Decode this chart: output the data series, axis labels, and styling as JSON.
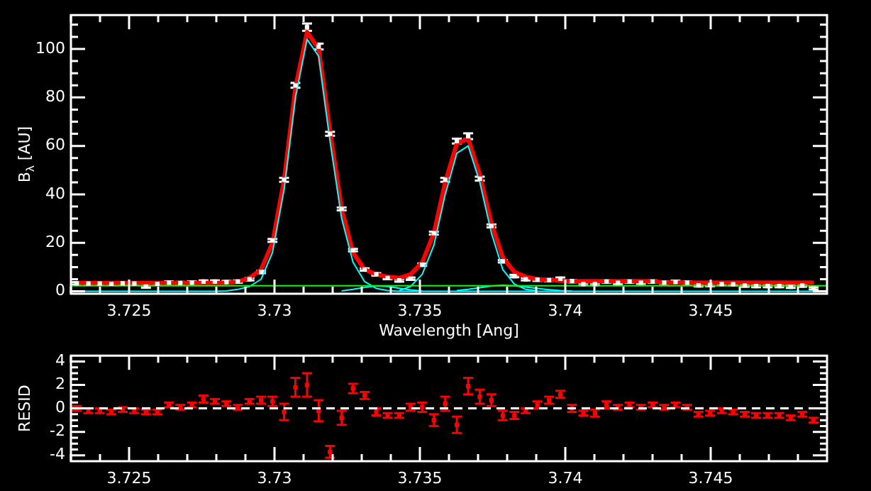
{
  "chart_data": [
    {
      "type": "line",
      "xlabel": "Wavelength [Ang]",
      "ylabel": "B$_{λ}$ [AU]",
      "x": [
        3.7232,
        3.7236,
        3.72399,
        3.72439,
        3.72478,
        3.72518,
        3.72558,
        3.72597,
        3.72637,
        3.72676,
        3.72716,
        3.72756,
        3.72795,
        3.72835,
        3.72874,
        3.72914,
        3.72954,
        3.72993,
        3.73033,
        3.73072,
        3.73112,
        3.73152,
        3.73191,
        3.73231,
        3.7327,
        3.7331,
        3.7335,
        3.73389,
        3.73429,
        3.73468,
        3.73508,
        3.73548,
        3.73587,
        3.73627,
        3.73666,
        3.73706,
        3.73746,
        3.73785,
        3.73825,
        3.73864,
        3.73904,
        3.73944,
        3.73983,
        3.74023,
        3.74062,
        3.74102,
        3.74142,
        3.74181,
        3.74221,
        3.7426,
        3.743,
        3.7434,
        3.74379,
        3.74419,
        3.74458,
        3.74498,
        3.74538,
        3.74577,
        3.74617,
        3.74656,
        3.74696,
        3.74736,
        3.74775,
        3.74815,
        3.74854
      ],
      "xlim": [
        3.723,
        3.749
      ],
      "xticks": [
        {
          "value": 3.723,
          "label": null
        },
        {
          "value": 3.724,
          "label": null
        },
        3.725,
        {
          "value": 3.726,
          "label": null
        },
        {
          "value": 3.727,
          "label": null
        },
        {
          "value": 3.728,
          "label": null
        },
        {
          "value": 3.729,
          "label": null
        },
        3.73,
        {
          "value": 3.731,
          "label": null
        },
        {
          "value": 3.732,
          "label": null
        },
        {
          "value": 3.733,
          "label": null
        },
        {
          "value": 3.734,
          "label": null
        },
        3.735,
        {
          "value": 3.736,
          "label": null
        },
        {
          "value": 3.737,
          "label": null
        },
        {
          "value": 3.738,
          "label": null
        },
        {
          "value": 3.739,
          "label": null
        },
        3.74,
        {
          "value": 3.741,
          "label": null
        },
        {
          "value": 3.742,
          "label": null
        },
        {
          "value": 3.743,
          "label": null
        },
        {
          "value": 3.744,
          "label": null
        },
        3.745,
        {
          "value": 3.746,
          "label": null
        },
        {
          "value": 3.747,
          "label": null
        },
        {
          "value": 3.748,
          "label": null
        }
      ],
      "ylim": [
        -1,
        114
      ],
      "yticks": [
        0,
        {
          "value": 5,
          "label": null
        },
        {
          "value": 10,
          "label": null
        },
        {
          "value": 15,
          "label": null
        },
        20,
        {
          "value": 25,
          "label": null
        },
        {
          "value": 30,
          "label": null
        },
        {
          "value": 35,
          "label": null
        },
        40,
        {
          "value": 45,
          "label": null
        },
        {
          "value": 50,
          "label": null
        },
        {
          "value": 55,
          "label": null
        },
        60,
        {
          "value": 65,
          "label": null
        },
        {
          "value": 70,
          "label": null
        },
        {
          "value": 75,
          "label": null
        },
        80,
        {
          "value": 85,
          "label": null
        },
        {
          "value": 90,
          "label": null
        },
        {
          "value": 95,
          "label": null
        },
        100,
        {
          "value": 105,
          "label": null
        },
        {
          "value": 110,
          "label": null
        }
      ],
      "line_style": "solid",
      "series": [
        {
          "type": "scatter",
          "marker": "square",
          "color": "#ffffff",
          "values": [
            3.3,
            3.2,
            3.2,
            3.1,
            3.3,
            3.2,
            2.0,
            3.1,
            3.6,
            3.4,
            3.6,
            4.0,
            4.0,
            3.8,
            4.0,
            5,
            8,
            21,
            46,
            85,
            109,
            101,
            65,
            34,
            17,
            9,
            7,
            5.5,
            4.5,
            5.2,
            11,
            24,
            46,
            62,
            64,
            46.5,
            27,
            12.4,
            6.3,
            5,
            4.8,
            4.6,
            5.2,
            4.2,
            3.0,
            3.0,
            4,
            3.5,
            4,
            3.6,
            4,
            3.6,
            3.9,
            3.6,
            2.5,
            2.6,
            3,
            2.9,
            2.4,
            2.2,
            2.2,
            2.2,
            1.9,
            2.4,
            1.3
          ],
          "errors": [
            0.5,
            0.5,
            0.5,
            0.5,
            0.5,
            0.5,
            0.5,
            0.5,
            0.5,
            0.5,
            0.5,
            0.5,
            0.5,
            0.5,
            0.5,
            0.5,
            0.5,
            0.6,
            0.8,
            1,
            1.5,
            1.2,
            0.8,
            0.6,
            0.5,
            0.5,
            0.5,
            0.5,
            0.5,
            0.5,
            0.5,
            0.6,
            0.8,
            1,
            1.2,
            0.8,
            0.6,
            0.5,
            0.5,
            0.5,
            0.5,
            0.5,
            0.5,
            0.5,
            0.5,
            0.5,
            0.5,
            0.5,
            0.5,
            0.5,
            0.5,
            0.5,
            0.5,
            0.5,
            0.5,
            0.5,
            0.5,
            0.5,
            0.5,
            0.5,
            0.5,
            0.5,
            0.5,
            0.5,
            0.5
          ]
        },
        {
          "type": "line",
          "color": "#ff0000",
          "values": [
            3.5,
            3.5,
            3.5,
            3.5,
            3.5,
            3.5,
            3.5,
            3.5,
            3.5,
            3.5,
            3.5,
            3.5,
            3.5,
            3.5,
            4,
            5.5,
            9,
            20,
            46,
            84,
            107,
            100,
            66,
            34,
            16,
            9,
            7,
            6,
            5.5,
            7,
            12,
            24,
            45,
            61,
            63,
            48,
            28,
            14,
            8,
            6,
            5,
            4.6,
            4.4,
            4.2,
            4.2,
            4.2,
            4.2,
            4.2,
            4.2,
            4.2,
            4.2,
            3.6,
            3.6,
            3.6,
            3.6,
            3.6,
            3.6,
            3.6,
            3.6,
            3.6,
            3.6,
            3.6,
            3.6,
            3.6,
            3.6
          ]
        },
        {
          "type": "line",
          "color": "#00ffff",
          "values": [
            0,
            0,
            0,
            0,
            0,
            0,
            0,
            0,
            0,
            0,
            0,
            0,
            0,
            0.2,
            0.8,
            2,
            5,
            16,
            42,
            80,
            104,
            97,
            62,
            30,
            12,
            4,
            1.2,
            0.3,
            0,
            0,
            0,
            0,
            0,
            0,
            0,
            0,
            0,
            0,
            0,
            0,
            0,
            0,
            0,
            0,
            0,
            0,
            0,
            0,
            0,
            0,
            0,
            0,
            0,
            0,
            0,
            0,
            0,
            0,
            0,
            0,
            0,
            0,
            0,
            0,
            0
          ]
        },
        {
          "type": "line",
          "color": "#00ffff",
          "x": [
            3.73429,
            3.73468,
            3.73508,
            3.73548,
            3.73587,
            3.73627,
            3.73666,
            3.73706,
            3.73746,
            3.73785,
            3.73825,
            3.73864,
            3.73904
          ],
          "values": [
            0.3,
            2,
            7,
            19,
            40,
            57,
            60,
            45,
            24,
            9,
            3,
            0.8,
            0.2
          ]
        },
        {
          "type": "line",
          "color": "#00ffff",
          "x": [
            3.73231,
            3.7327,
            3.7331,
            3.7335,
            3.73389,
            3.73429,
            3.73468,
            3.73508
          ],
          "values": [
            0.2,
            0.8,
            1.6,
            2.2,
            2.0,
            1.3,
            0.6,
            0.2
          ]
        },
        {
          "type": "line",
          "color": "#00ffff",
          "x": [
            3.73627,
            3.73666,
            3.73706,
            3.73746,
            3.73785,
            3.73825,
            3.73864,
            3.73904,
            3.73944,
            3.73983,
            3.74023
          ],
          "values": [
            0.3,
            0.8,
            1.5,
            2.2,
            2.5,
            2.3,
            1.8,
            1.2,
            0.7,
            0.3,
            0.1
          ]
        },
        {
          "type": "line",
          "color": "#00ff00",
          "x": [
            3.723,
            3.749
          ],
          "values": [
            2.3,
            2.3
          ]
        }
      ]
    },
    {
      "type": "scatter",
      "ylabel": "RESID",
      "x": [
        3.7232,
        3.7236,
        3.72399,
        3.72439,
        3.72478,
        3.72518,
        3.72558,
        3.72597,
        3.72637,
        3.72676,
        3.72716,
        3.72756,
        3.72795,
        3.72835,
        3.72874,
        3.72914,
        3.72954,
        3.72993,
        3.73033,
        3.73072,
        3.73112,
        3.73152,
        3.73191,
        3.73231,
        3.7327,
        3.7331,
        3.7335,
        3.73389,
        3.73429,
        3.73468,
        3.73508,
        3.73548,
        3.73587,
        3.73627,
        3.73666,
        3.73706,
        3.73746,
        3.73785,
        3.73825,
        3.73864,
        3.73904,
        3.73944,
        3.73983,
        3.74023,
        3.74062,
        3.74102,
        3.74142,
        3.74181,
        3.74221,
        3.7426,
        3.743,
        3.7434,
        3.74379,
        3.74419,
        3.74458,
        3.74498,
        3.74538,
        3.74577,
        3.74617,
        3.74656,
        3.74696,
        3.74736,
        3.74775,
        3.74815,
        3.74854
      ],
      "xlim": [
        3.723,
        3.749
      ],
      "xticks": [
        {
          "value": 3.723,
          "label": null
        },
        {
          "value": 3.724,
          "label": null
        },
        3.725,
        {
          "value": 3.726,
          "label": null
        },
        {
          "value": 3.727,
          "label": null
        },
        {
          "value": 3.728,
          "label": null
        },
        {
          "value": 3.729,
          "label": null
        },
        3.73,
        {
          "value": 3.731,
          "label": null
        },
        {
          "value": 3.732,
          "label": null
        },
        {
          "value": 3.733,
          "label": null
        },
        {
          "value": 3.734,
          "label": null
        },
        3.735,
        {
          "value": 3.736,
          "label": null
        },
        {
          "value": 3.737,
          "label": null
        },
        {
          "value": 3.738,
          "label": null
        },
        {
          "value": 3.739,
          "label": null
        },
        3.74,
        {
          "value": 3.741,
          "label": null
        },
        {
          "value": 3.742,
          "label": null
        },
        {
          "value": 3.743,
          "label": null
        },
        {
          "value": 3.744,
          "label": null
        },
        3.745,
        {
          "value": 3.746,
          "label": null
        },
        {
          "value": 3.747,
          "label": null
        },
        {
          "value": 3.748,
          "label": null
        }
      ],
      "ylim": [
        -4.5,
        4.5
      ],
      "yticks": [
        -4,
        {
          "value": -3.5,
          "label": null
        },
        {
          "value": -3,
          "label": null
        },
        {
          "value": -2.5,
          "label": null
        },
        -2,
        {
          "value": -1.5,
          "label": null
        },
        {
          "value": -1,
          "label": null
        },
        {
          "value": -0.5,
          "label": null
        },
        0,
        {
          "value": 0.5,
          "label": null
        },
        {
          "value": 1,
          "label": null
        },
        {
          "value": 1.5,
          "label": null
        },
        2,
        {
          "value": 2.5,
          "label": null
        },
        {
          "value": 3,
          "label": null
        },
        {
          "value": 3.5,
          "label": null
        },
        4
      ],
      "ref_lines": [
        {
          "axis": "y",
          "value": 0,
          "color": "#ffffff",
          "line_style": "dashed"
        }
      ],
      "series": [
        {
          "color": "#ff0000",
          "marker": "square",
          "values": [
            0,
            -0.2,
            -0.2,
            -0.3,
            -0.1,
            -0.2,
            -0.3,
            -0.3,
            0.3,
            0.1,
            0.3,
            0.8,
            0.6,
            0.4,
            0.1,
            0.6,
            0.7,
            0.6,
            -0.3,
            1.8,
            2.0,
            -0.2,
            -3.7,
            -0.8,
            1.7,
            1.1,
            -0.3,
            -0.6,
            -0.6,
            0.1,
            0.1,
            -1.0,
            0.4,
            -1.4,
            1.9,
            1.0,
            0.7,
            -0.6,
            -0.6,
            -0.2,
            0.3,
            0.7,
            1.2,
            0.0,
            -0.4,
            -0.4,
            0.3,
            0.1,
            0.3,
            0.1,
            0.3,
            0.1,
            0.3,
            0.1,
            -0.5,
            -0.4,
            -0.2,
            -0.3,
            -0.5,
            -0.6,
            -0.6,
            -0.6,
            -0.8,
            -0.5,
            -1.0
          ],
          "errors": [
            0.2,
            0.2,
            0.2,
            0.2,
            0.2,
            0.2,
            0.2,
            0.2,
            0.2,
            0.2,
            0.2,
            0.3,
            0.2,
            0.2,
            0.2,
            0.2,
            0.3,
            0.4,
            0.7,
            0.8,
            1.0,
            0.9,
            0.5,
            0.6,
            0.4,
            0.3,
            0.3,
            0.2,
            0.2,
            0.3,
            0.4,
            0.5,
            0.6,
            0.7,
            0.7,
            0.6,
            0.5,
            0.4,
            0.3,
            0.2,
            0.3,
            0.3,
            0.3,
            0.3,
            0.2,
            0.3,
            0.3,
            0.2,
            0.2,
            0.2,
            0.2,
            0.2,
            0.2,
            0.2,
            0.2,
            0.2,
            0.2,
            0.2,
            0.2,
            0.2,
            0.2,
            0.2,
            0.2,
            0.2,
            0.2
          ]
        }
      ]
    }
  ]
}
